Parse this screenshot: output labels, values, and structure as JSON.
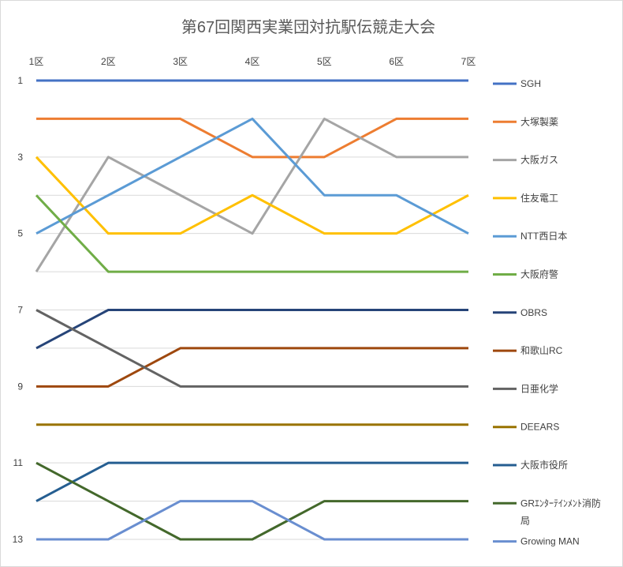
{
  "chart_data": {
    "type": "line",
    "title": "第67回関西実業団対抗駅伝競走大会",
    "categories": [
      "1区",
      "2区",
      "3区",
      "4区",
      "5区",
      "6区",
      "7区"
    ],
    "y_ticks": [
      "1",
      "3",
      "5",
      "7",
      "9",
      "11",
      "13"
    ],
    "ylim": [
      1,
      13
    ],
    "y_reversed": true,
    "grid": true,
    "legend_position": "right",
    "series": [
      {
        "name": "SGH",
        "color": "#4472C4",
        "values": [
          1,
          1,
          1,
          1,
          1,
          1,
          1
        ]
      },
      {
        "name": "大塚製薬",
        "color": "#ED7D31",
        "values": [
          2,
          2,
          2,
          3,
          3,
          2,
          2
        ]
      },
      {
        "name": "大阪ガス",
        "color": "#A5A5A5",
        "values": [
          6,
          3,
          4,
          5,
          2,
          3,
          3
        ]
      },
      {
        "name": "住友電工",
        "color": "#FFC000",
        "values": [
          3,
          5,
          5,
          4,
          5,
          5,
          4
        ]
      },
      {
        "name": "NTT西日本",
        "color": "#5B9BD5",
        "values": [
          5,
          4,
          3,
          2,
          4,
          4,
          5
        ]
      },
      {
        "name": "大阪府警",
        "color": "#70AD47",
        "values": [
          4,
          6,
          6,
          6,
          6,
          6,
          6
        ]
      },
      {
        "name": "OBRS",
        "color": "#264478",
        "values": [
          8,
          7,
          7,
          7,
          7,
          7,
          7
        ]
      },
      {
        "name": "和歌山RC",
        "color": "#9E480E",
        "values": [
          9,
          9,
          8,
          8,
          8,
          8,
          8
        ]
      },
      {
        "name": "日亜化学",
        "color": "#636363",
        "values": [
          7,
          8,
          9,
          9,
          9,
          9,
          9
        ]
      },
      {
        "name": "DEEARS",
        "color": "#997300",
        "values": [
          10,
          10,
          10,
          10,
          10,
          10,
          10
        ]
      },
      {
        "name": "大阪市役所",
        "color": "#255E91",
        "values": [
          12,
          11,
          11,
          11,
          11,
          11,
          11
        ]
      },
      {
        "name": "GRｴﾝﾀｰﾃｲﾝﾒﾝﾄ消防局",
        "color": "#43682B",
        "values": [
          11,
          12,
          13,
          13,
          12,
          12,
          12
        ]
      },
      {
        "name": "Growing MAN",
        "color": "#698ED0",
        "values": [
          13,
          13,
          12,
          12,
          13,
          13,
          13
        ]
      }
    ]
  }
}
